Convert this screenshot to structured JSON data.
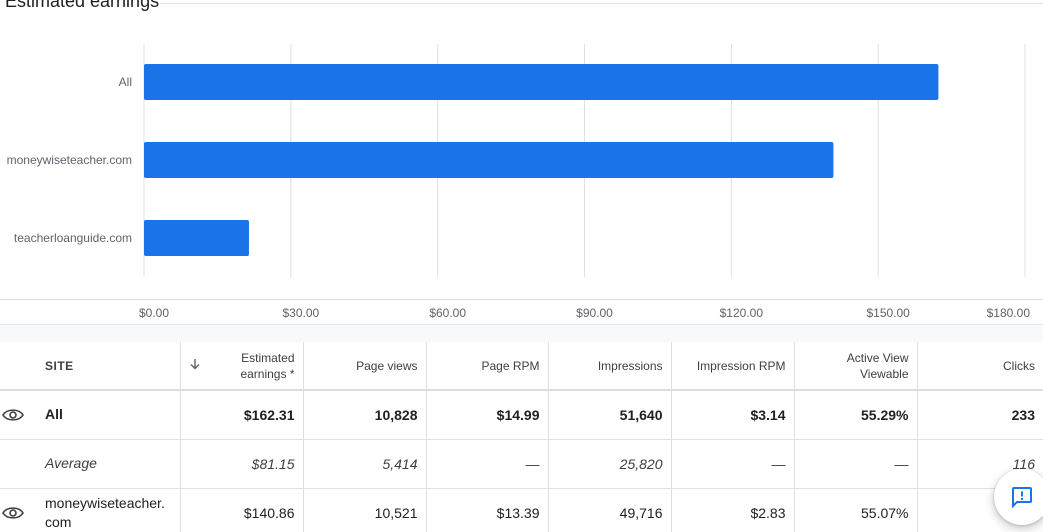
{
  "card": {
    "title": "Estimated earnings"
  },
  "chart_data": {
    "type": "bar",
    "orientation": "horizontal",
    "categories": [
      "All",
      "moneywiseteacher.com",
      "teacherloanguide.com"
    ],
    "values": [
      162.31,
      140.86,
      21.45
    ],
    "x_ticks": [
      0,
      30,
      60,
      90,
      120,
      150,
      180
    ],
    "x_tick_labels": [
      "$0.00",
      "$30.00",
      "$60.00",
      "$90.00",
      "$120.00",
      "$150.00",
      "$180.00"
    ],
    "xlim": [
      0,
      180
    ],
    "grid": true,
    "bar_color": "#1a73e8"
  },
  "table": {
    "headers": {
      "site": "SITE",
      "estimated_earnings": "Estimated earnings *",
      "page_views": "Page views",
      "page_rpm": "Page RPM",
      "impressions": "Impressions",
      "impression_rpm": "Impression RPM",
      "active_view_viewable": "Active View Viewable",
      "clicks": "Clicks"
    },
    "sort_icon": "arrow-down-icon",
    "rows": [
      {
        "site": "All",
        "estimated_earnings": "$162.31",
        "page_views": "10,828",
        "page_rpm": "$14.99",
        "impressions": "51,640",
        "impression_rpm": "$3.14",
        "active_view_viewable": "55.29%",
        "clicks": "233"
      },
      {
        "site": "Average",
        "estimated_earnings": "$81.15",
        "page_views": "5,414",
        "page_rpm": "—",
        "impressions": "25,820",
        "impression_rpm": "—",
        "active_view_viewable": "—",
        "clicks": "116"
      },
      {
        "site": "moneywiseteacher.com",
        "estimated_earnings": "$140.86",
        "page_views": "10,521",
        "page_rpm": "$13.39",
        "impressions": "49,716",
        "impression_rpm": "$2.83",
        "active_view_viewable": "55.07%",
        "clicks": ""
      }
    ]
  },
  "feedback": {
    "icon": "feedback-icon"
  }
}
